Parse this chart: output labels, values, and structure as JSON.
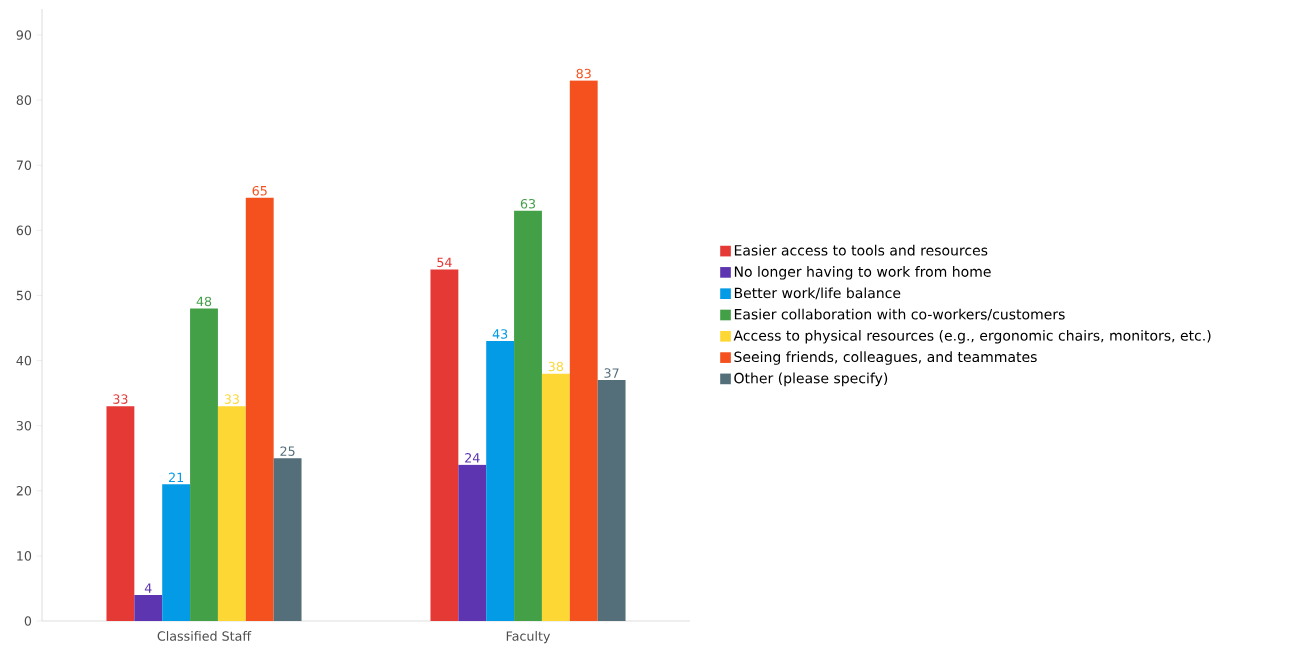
{
  "chart_data": {
    "type": "bar",
    "categories": [
      "Classified Staff",
      "Faculty"
    ],
    "series": [
      {
        "name": "Easier access to tools and resources",
        "color": "#e53935",
        "values": [
          33,
          54
        ]
      },
      {
        "name": "No longer having to work from home",
        "color": "#5e35b1",
        "values": [
          4,
          24
        ]
      },
      {
        "name": "Better work/life balance",
        "color": "#039be5",
        "values": [
          21,
          43
        ]
      },
      {
        "name": "Easier collaboration with co-workers/customers",
        "color": "#43a047",
        "values": [
          48,
          63
        ]
      },
      {
        "name": "Access to physical resources (e.g., ergonomic chairs, monitors, etc.)",
        "color": "#fdd835",
        "values": [
          33,
          38
        ]
      },
      {
        "name": "Seeing friends, colleagues, and teammates",
        "color": "#f4511e",
        "values": [
          65,
          83
        ]
      },
      {
        "name": "Other (please specify)",
        "color": "#546e7a",
        "values": [
          25,
          37
        ]
      }
    ],
    "ylim": [
      0,
      94
    ],
    "yticks": [
      0,
      10,
      20,
      30,
      40,
      50,
      60,
      70,
      80,
      90
    ],
    "data_labels": true,
    "legend": "right",
    "grid": false
  }
}
